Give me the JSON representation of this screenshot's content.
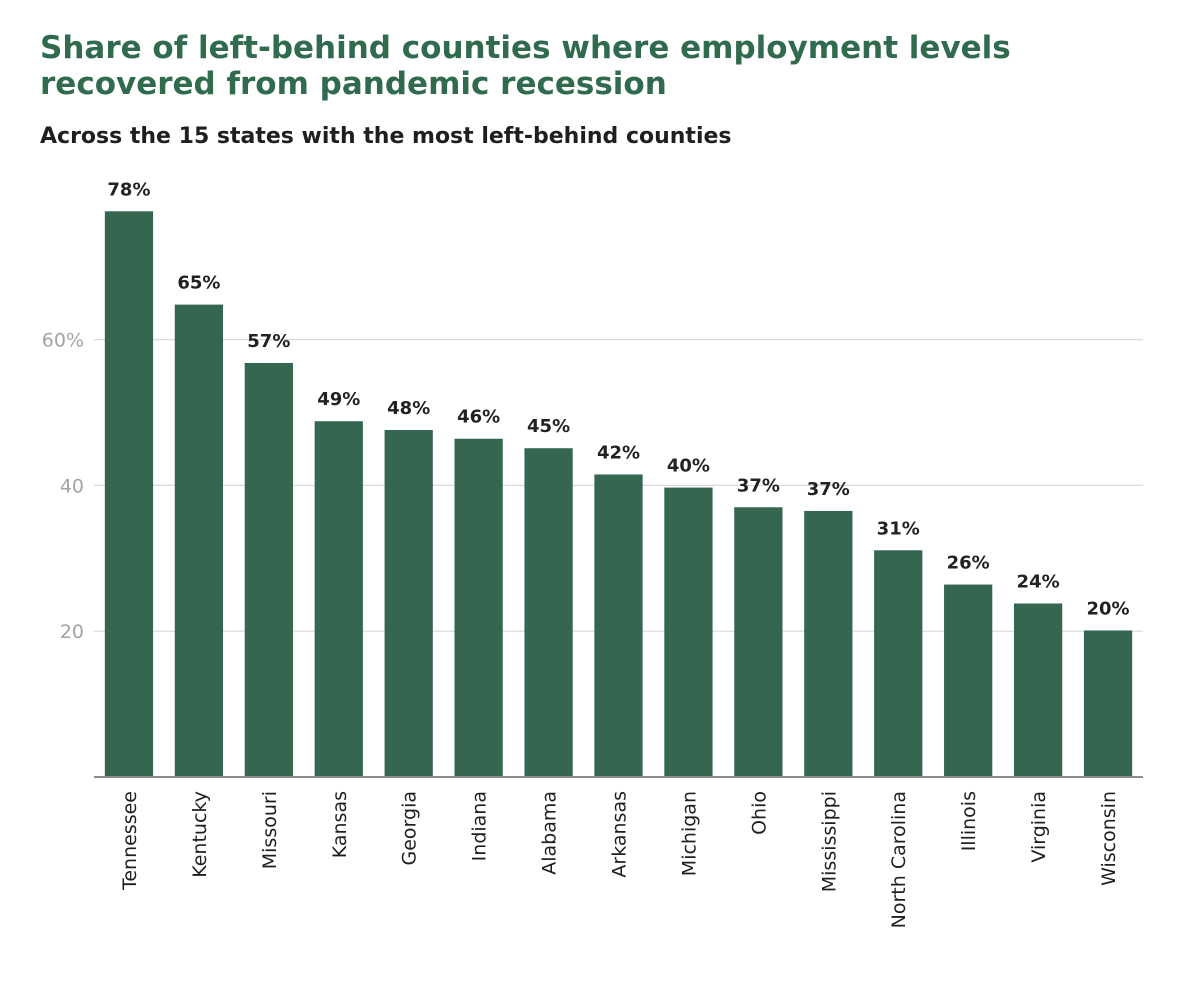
{
  "title": "Share of left-behind counties where employment levels recovered from pandemic recession",
  "subtitle": "Across the 15 states with the most left-behind counties",
  "colors": {
    "bar": "#346650",
    "title": "#2f6b4c",
    "grid": "#d9d9d9",
    "axis": "#8c8c8c",
    "tick_text": "#a3a3a3"
  },
  "chart_data": {
    "type": "bar",
    "title": "Share of left-behind counties where employment levels recovered from pandemic recession",
    "subtitle": "Across the 15 states with the most left-behind counties",
    "xlabel": "",
    "ylabel": "",
    "ylim": [
      0,
      80
    ],
    "y_ticks": [
      20,
      40,
      60
    ],
    "y_tick_labels": [
      "20",
      "40",
      "60%"
    ],
    "grid": true,
    "legend": "none",
    "categories": [
      "Tennessee",
      "Kentucky",
      "Missouri",
      "Kansas",
      "Georgia",
      "Indiana",
      "Alabama",
      "Arkansas",
      "Michigan",
      "Ohio",
      "Mississippi",
      "North Carolina",
      "Illinois",
      "Virginia",
      "Wisconsin"
    ],
    "values": [
      77.6,
      64.8,
      56.8,
      48.8,
      47.6,
      46.4,
      45.1,
      41.5,
      39.7,
      37.0,
      36.5,
      31.1,
      26.4,
      23.8,
      20.1
    ],
    "data_labels": [
      "78%",
      "65%",
      "57%",
      "49%",
      "48%",
      "46%",
      "45%",
      "42%",
      "40%",
      "37%",
      "37%",
      "31%",
      "26%",
      "24%",
      "20%"
    ]
  }
}
